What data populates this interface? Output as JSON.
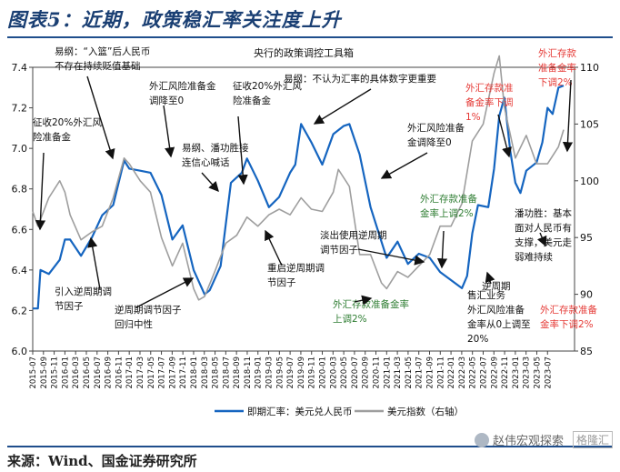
{
  "figure": {
    "title": "图表5：近期，政策稳汇率关注度上升",
    "source": "来源：Wind、国金证券研究所",
    "watermark": "赵伟宏观探索",
    "watermark_logo": "格隆汇"
  },
  "chart_data": {
    "type": "line",
    "title": "央行的政策调控工具箱",
    "x_ticks": [
      "2015-07",
      "2015-09",
      "2015-11",
      "2016-01",
      "2016-03",
      "2016-05",
      "2016-07",
      "2016-09",
      "2016-11",
      "2017-01",
      "2017-03",
      "2017-05",
      "2017-07",
      "2017-09",
      "2017-11",
      "2018-01",
      "2018-03",
      "2018-05",
      "2018-07",
      "2018-09",
      "2018-11",
      "2019-01",
      "2019-03",
      "2019-05",
      "2019-07",
      "2019-09",
      "2019-11",
      "2020-01",
      "2020-03",
      "2020-05",
      "2020-07",
      "2020-09",
      "2020-11",
      "2021-01",
      "2021-03",
      "2021-05",
      "2021-07",
      "2021-09",
      "2021-11",
      "2022-01",
      "2022-03",
      "2022-05",
      "2022-07",
      "2022-09",
      "2022-11",
      "2023-01",
      "2023-03",
      "2023-05",
      "2023-07"
    ],
    "y_left": {
      "min": 6.0,
      "max": 7.4,
      "ticks": [
        "6.0",
        "6.2",
        "6.4",
        "6.6",
        "6.8",
        "7.0",
        "7.2",
        "7.4"
      ]
    },
    "y_right": {
      "min": 85,
      "max": 110,
      "ticks": [
        "85",
        "90",
        "95",
        "100",
        "105",
        "110"
      ]
    },
    "legend_position": "bottom",
    "grid": false,
    "series": [
      {
        "name": "即期汇率：美元兑人民币",
        "axis": "left",
        "color": "#1565c0",
        "x": [
          2015.5,
          2015.58,
          2015.62,
          2015.75,
          2015.92,
          2016.0,
          2016.08,
          2016.25,
          2016.42,
          2016.58,
          2016.75,
          2016.92,
          2017.0,
          2017.17,
          2017.33,
          2017.5,
          2017.67,
          2017.83,
          2018.0,
          2018.17,
          2018.25,
          2018.42,
          2018.58,
          2018.75,
          2018.83,
          2019.0,
          2019.17,
          2019.33,
          2019.5,
          2019.58,
          2019.67,
          2019.83,
          2020.0,
          2020.17,
          2020.33,
          2020.42,
          2020.58,
          2020.75,
          2020.92,
          2021.0,
          2021.17,
          2021.33,
          2021.5,
          2021.67,
          2021.83,
          2022.0,
          2022.17,
          2022.25,
          2022.33,
          2022.42,
          2022.58,
          2022.67,
          2022.75,
          2022.83,
          2022.92,
          2023.0,
          2023.08,
          2023.17,
          2023.33,
          2023.42,
          2023.5,
          2023.58,
          2023.67,
          2023.75
        ],
        "values": [
          6.21,
          6.21,
          6.4,
          6.38,
          6.45,
          6.55,
          6.55,
          6.47,
          6.56,
          6.67,
          6.72,
          6.94,
          6.9,
          6.89,
          6.88,
          6.77,
          6.55,
          6.62,
          6.4,
          6.28,
          6.3,
          6.42,
          6.83,
          6.88,
          6.95,
          6.84,
          6.71,
          6.76,
          6.88,
          6.92,
          7.12,
          7.03,
          6.92,
          7.07,
          7.11,
          7.12,
          6.97,
          6.71,
          6.54,
          6.46,
          6.54,
          6.43,
          6.48,
          6.46,
          6.39,
          6.35,
          6.31,
          6.37,
          6.58,
          6.72,
          6.71,
          6.9,
          7.16,
          7.25,
          6.99,
          6.83,
          6.78,
          6.89,
          6.93,
          7.03,
          7.2,
          7.17,
          7.3,
          7.31
        ]
      },
      {
        "name": "美元指数（右轴）",
        "axis": "right",
        "color": "#9e9e9e",
        "x": [
          2015.5,
          2015.58,
          2015.75,
          2015.92,
          2016.0,
          2016.08,
          2016.25,
          2016.42,
          2016.58,
          2016.75,
          2016.92,
          2017.0,
          2017.17,
          2017.33,
          2017.5,
          2017.67,
          2017.83,
          2018.0,
          2018.08,
          2018.17,
          2018.33,
          2018.5,
          2018.67,
          2018.83,
          2019.0,
          2019.17,
          2019.33,
          2019.5,
          2019.67,
          2019.83,
          2020.0,
          2020.17,
          2020.25,
          2020.42,
          2020.58,
          2020.75,
          2020.92,
          2021.0,
          2021.17,
          2021.33,
          2021.5,
          2021.67,
          2021.83,
          2022.0,
          2022.17,
          2022.33,
          2022.5,
          2022.67,
          2022.75,
          2022.83,
          2023.0,
          2023.17,
          2023.33,
          2023.5,
          2023.67,
          2023.75
        ],
        "values": [
          97.3,
          96.0,
          98.5,
          100.0,
          99.0,
          97.0,
          94.8,
          95.5,
          96.0,
          98.5,
          102.0,
          101.5,
          100.0,
          99.0,
          95.0,
          92.5,
          94.5,
          90.5,
          89.5,
          89.8,
          92.0,
          94.5,
          95.2,
          96.8,
          96.0,
          97.0,
          97.5,
          97.0,
          98.5,
          97.5,
          97.3,
          99.0,
          101.0,
          99.5,
          93.5,
          93.5,
          91.0,
          90.5,
          92.0,
          91.5,
          92.5,
          93.5,
          96.0,
          96.0,
          98.0,
          103.5,
          105.0,
          109.5,
          111.0,
          106.5,
          102.0,
          104.0,
          101.5,
          101.5,
          103.0,
          104.5
        ]
      }
    ],
    "annotations": [
      {
        "id": "a1",
        "lines": [
          "易纲：“入篮”后人民币",
          "不存在持续贬值基础"
        ],
        "color": "black"
      },
      {
        "id": "a2",
        "lines": [
          "征收20%外汇风",
          "险准备金"
        ],
        "color": "black"
      },
      {
        "id": "a3",
        "lines": [
          "外汇风险准备金",
          "调降至0"
        ],
        "color": "black"
      },
      {
        "id": "a4",
        "lines": [
          "征收20%外汇风",
          "险准备金"
        ],
        "color": "black"
      },
      {
        "id": "a5",
        "lines": [
          "易纲：不认为汇率的具体数字更重要"
        ],
        "color": "black"
      },
      {
        "id": "a6",
        "lines": [
          "易纲、潘功胜接",
          "连信心喊话"
        ],
        "color": "black"
      },
      {
        "id": "a7",
        "lines": [
          "外汇风险准备",
          "金调降至0"
        ],
        "color": "black"
      },
      {
        "id": "a8",
        "lines": [
          "外汇存款准备",
          "金率上调2%"
        ],
        "color": "green"
      },
      {
        "id": "a9",
        "lines": [
          "外汇存款准",
          "备金率下调",
          "1%"
        ],
        "color": "red"
      },
      {
        "id": "a10",
        "lines": [
          "外汇存款",
          "准备金率",
          "下调2%"
        ],
        "color": "red"
      },
      {
        "id": "a11",
        "lines": [
          "引入逆周期调",
          "节因子"
        ],
        "color": "black"
      },
      {
        "id": "a12",
        "lines": [
          "逆周期调节因子",
          "回归中性"
        ],
        "color": "black"
      },
      {
        "id": "a13",
        "lines": [
          "重启逆周期调",
          "节因子"
        ],
        "color": "black"
      },
      {
        "id": "a14",
        "lines": [
          "淡出使用逆周期",
          "调节因子"
        ],
        "color": "black"
      },
      {
        "id": "a15",
        "lines": [
          "外汇存款准备金率",
          "上调2%"
        ],
        "color": "green"
      },
      {
        "id": "a16",
        "lines": [
          "逆周期"
        ],
        "color": "black"
      },
      {
        "id": "a17",
        "lines": [
          "潘功胜：基本",
          "面对人民币有",
          "支撑，美元走",
          "弱难持续"
        ],
        "color": "black"
      },
      {
        "id": "a18",
        "lines": [
          "售汇业务",
          "外汇风险准备",
          "金率从0上调至",
          "20%"
        ],
        "color": "black"
      },
      {
        "id": "a19",
        "lines": [
          "外汇存款准备",
          "金率下调2%"
        ],
        "color": "red"
      }
    ]
  }
}
